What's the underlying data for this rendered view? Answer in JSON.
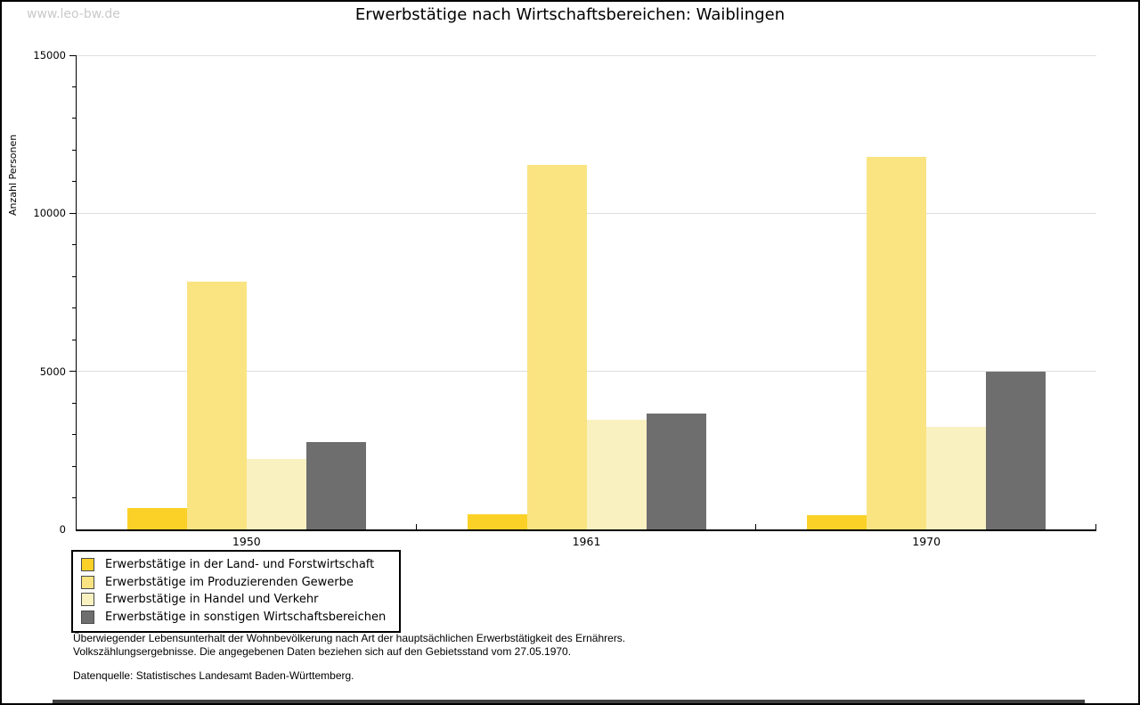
{
  "watermark": "www.leo-bw.de",
  "title": "Erwerbstätige nach Wirtschaftsbereichen: Waiblingen",
  "chart_data": {
    "type": "bar",
    "title": "Erwerbstätige nach Wirtschaftsbereichen: Waiblingen",
    "xlabel": "",
    "ylabel": "Anzahl Personen",
    "categories": [
      "1950",
      "1961",
      "1970"
    ],
    "series": [
      {
        "name": "Erwerbstätige in der Land- und Forstwirtschaft",
        "color": "#FBD128",
        "values": [
          680,
          490,
          440
        ]
      },
      {
        "name": "Erwerbstätige im Produzierenden Gewerbe",
        "color": "#FAE482",
        "values": [
          7840,
          11530,
          11780
        ]
      },
      {
        "name": "Erwerbstätige in Handel und Verkehr",
        "color": "#FAF1C1",
        "values": [
          2230,
          3480,
          3230
        ]
      },
      {
        "name": "Erwerbstätige in sonstigen Wirtschaftsbereichen",
        "color": "#6E6E6E",
        "values": [
          2770,
          3670,
          5000
        ]
      }
    ],
    "ylim": [
      0,
      15000
    ],
    "ytick_major": 5000,
    "ytick_minor": 1000,
    "grid": true,
    "legend_position": "bottom-left"
  },
  "footnotes": {
    "line1": "Überwiegender Lebensunterhalt der Wohnbevölkerung nach Art der hauptsächlichen Erwerbstätigkeit des Ernährers.",
    "line2": "Volkszählungsergebnisse. Die angegebenen Daten beziehen sich auf den Gebietsstand vom 27.05.1970.",
    "source": "Datenquelle: Statistisches Landesamt Baden-Württemberg."
  }
}
